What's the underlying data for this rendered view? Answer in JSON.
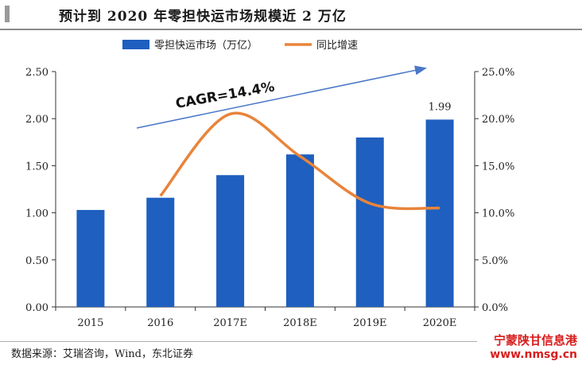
{
  "title": "预计到 2020 年零担快运市场规模近 2 万亿",
  "source": "数据来源：艾瑞咨询，Wind，东北证券",
  "watermark": {
    "line1": "宁蒙陕甘信息港",
    "line2": "www.nmsg.cn"
  },
  "annotation": "CAGR=14.4%",
  "colors": {
    "bar": "#1f5fbf",
    "line": "#e8843a",
    "arrow": "#4a78c8",
    "watermark": "#d81e1e"
  },
  "chart_data": {
    "type": "bar",
    "categories": [
      "2015",
      "2016",
      "2017E",
      "2018E",
      "2019E",
      "2020E"
    ],
    "series": [
      {
        "name": "零担快运市场（万亿）",
        "type": "bar",
        "axis": "left",
        "values": [
          1.03,
          1.16,
          1.4,
          1.62,
          1.8,
          1.99
        ]
      },
      {
        "name": "同比增速",
        "type": "line",
        "axis": "right",
        "values": [
          null,
          0.118,
          0.205,
          0.16,
          0.11,
          0.105
        ]
      }
    ],
    "data_labels": [
      {
        "category": "2020E",
        "text": "1.99"
      }
    ],
    "y_left": {
      "range": [
        0,
        2.5
      ],
      "ticks": [
        "0.00",
        "0.50",
        "1.00",
        "1.50",
        "2.00",
        "2.50"
      ]
    },
    "y_right": {
      "range": [
        0,
        0.25
      ],
      "ticks": [
        "0.0%",
        "5.0%",
        "10.0%",
        "15.0%",
        "20.0%",
        "25.0%"
      ]
    },
    "legend_position": "top",
    "grid": false
  }
}
